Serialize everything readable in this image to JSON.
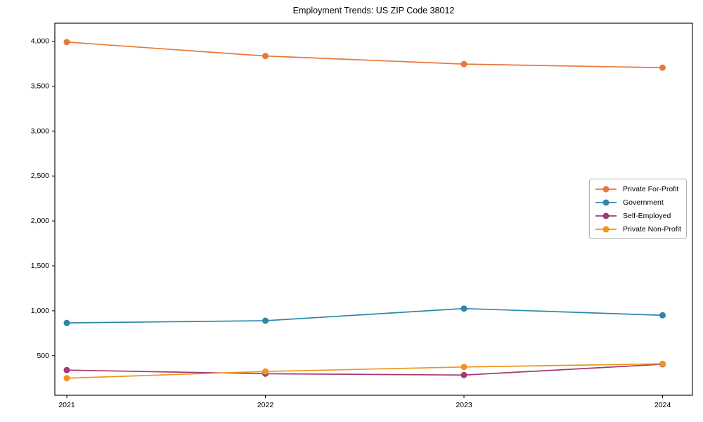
{
  "figure": {
    "title": "Employment Trends: US ZIP Code 38012"
  },
  "chart_data": {
    "type": "line",
    "title": "Employment Trends: US ZIP Code 38012",
    "xlabel": "",
    "ylabel": "",
    "grid": false,
    "marker": "circle",
    "x_tick_labels": [
      "2021",
      "2022",
      "2023",
      "2024"
    ],
    "x": [
      2021,
      2022,
      2023,
      2024
    ],
    "series": [
      {
        "name": "Private For-Profit",
        "color": "#E8783C",
        "values": [
          3990,
          3835,
          3745,
          3705
        ]
      },
      {
        "name": "Government",
        "color": "#2E86AB",
        "values": [
          865,
          890,
          1025,
          950
        ]
      },
      {
        "name": "Self-Employed",
        "color": "#A23B72",
        "values": [
          340,
          300,
          285,
          405
        ]
      },
      {
        "name": "Private Non-Profit",
        "color": "#F0941F",
        "values": [
          250,
          325,
          375,
          410
        ]
      }
    ],
    "y_ticks": [
      {
        "value": 500,
        "label": "500"
      },
      {
        "value": 1000,
        "label": "1,000"
      },
      {
        "value": 1500,
        "label": "1,500"
      },
      {
        "value": 2000,
        "label": "2,000"
      },
      {
        "value": 2500,
        "label": "2,500"
      },
      {
        "value": 3000,
        "label": "3,000"
      },
      {
        "value": 3500,
        "label": "3,500"
      },
      {
        "value": 4000,
        "label": "4,000"
      }
    ],
    "ylim": [
      60,
      4200
    ],
    "legend": {
      "position": "center-right",
      "border_color": "#b3b3b3"
    },
    "frame_color": "#000000",
    "text_color": "#000000"
  }
}
